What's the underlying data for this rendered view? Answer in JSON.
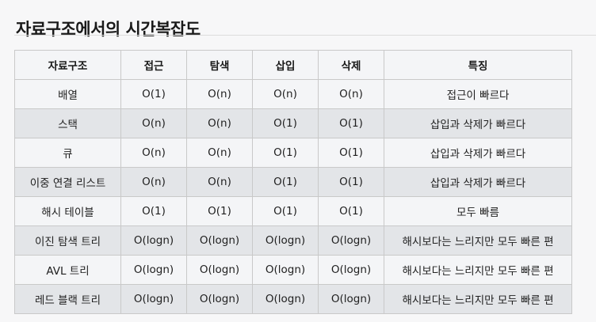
{
  "title": "자료구조에서의 시간복잡도",
  "table": {
    "headers": [
      "자료구조",
      "접근",
      "탐색",
      "삽입",
      "삭제",
      "특징"
    ],
    "rows": [
      [
        "배열",
        "O(1)",
        "O(n)",
        "O(n)",
        "O(n)",
        "접근이 빠르다"
      ],
      [
        "스택",
        "O(n)",
        "O(n)",
        "O(1)",
        "O(1)",
        "삽입과 삭제가 빠르다"
      ],
      [
        "큐",
        "O(n)",
        "O(n)",
        "O(1)",
        "O(1)",
        "삽입과 삭제가 빠르다"
      ],
      [
        "이중 연결 리스트",
        "O(n)",
        "O(n)",
        "O(1)",
        "O(1)",
        "삽입과 삭제가 빠르다"
      ],
      [
        "해시 테이블",
        "O(1)",
        "O(1)",
        "O(1)",
        "O(1)",
        "모두 빠름"
      ],
      [
        "이진 탐색 트리",
        "O(logn)",
        "O(logn)",
        "O(logn)",
        "O(logn)",
        "해시보다는 느리지만 모두 빠른 편"
      ],
      [
        "AVL 트리",
        "O(logn)",
        "O(logn)",
        "O(logn)",
        "O(logn)",
        "해시보다는 느리지만 모두 빠른 편"
      ],
      [
        "레드 블랙 트리",
        "O(logn)",
        "O(logn)",
        "O(logn)",
        "O(logn)",
        "해시보다는 느리지만 모두 빠른 편"
      ]
    ]
  }
}
